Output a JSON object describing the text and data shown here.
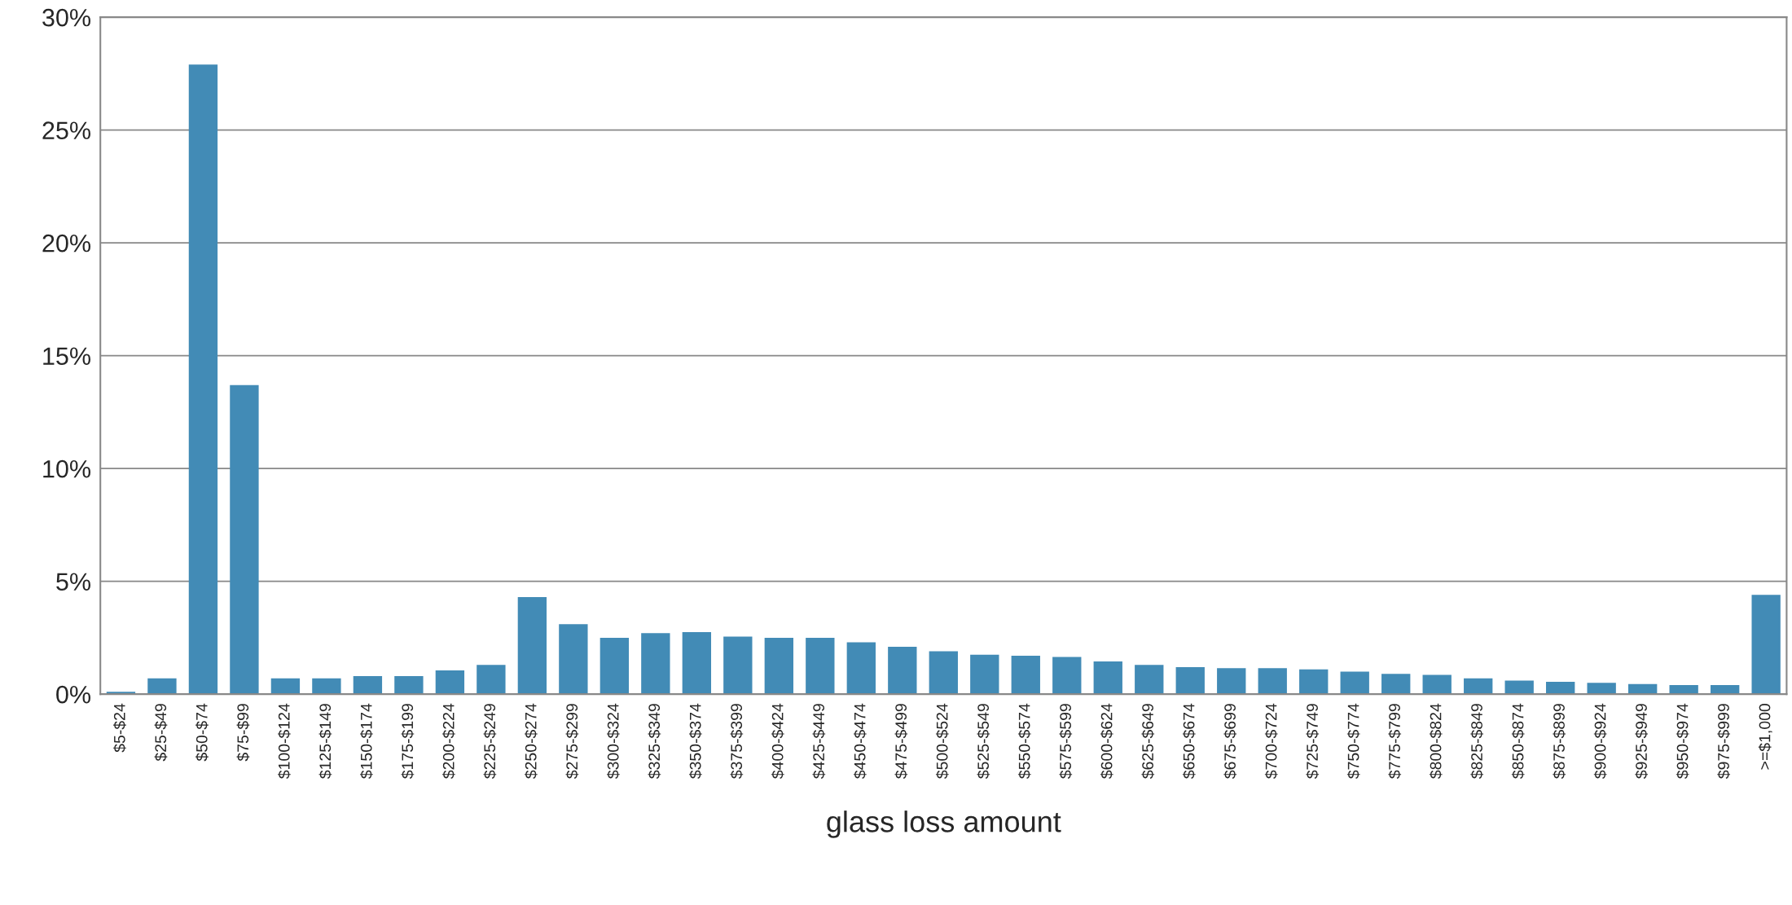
{
  "chart_data": {
    "type": "bar",
    "xlabel": "glass loss amount",
    "categories": [
      "$5-$24",
      "$25-$49",
      "$50-$74",
      "$75-$99",
      "$100-$124",
      "$125-$149",
      "$150-$174",
      "$175-$199",
      "$200-$224",
      "$225-$249",
      "$250-$274",
      "$275-$299",
      "$300-$324",
      "$325-$349",
      "$350-$374",
      "$375-$399",
      "$400-$424",
      "$425-$449",
      "$450-$474",
      "$475-$499",
      "$500-$524",
      "$525-$549",
      "$550-$574",
      "$575-$599",
      "$600-$624",
      "$625-$649",
      "$650-$674",
      "$675-$699",
      "$700-$724",
      "$725-$749",
      "$750-$774",
      "$775-$799",
      "$800-$824",
      "$825-$849",
      "$850-$874",
      "$875-$899",
      "$900-$924",
      "$925-$949",
      "$950-$974",
      "$975-$999",
      ">=$1,000"
    ],
    "values": [
      0.1,
      0.7,
      27.9,
      13.7,
      0.7,
      0.7,
      0.8,
      0.8,
      1.05,
      1.3,
      4.3,
      3.1,
      2.5,
      2.7,
      2.75,
      2.55,
      2.5,
      2.5,
      2.3,
      2.1,
      1.9,
      1.75,
      1.7,
      1.65,
      1.45,
      1.3,
      1.2,
      1.15,
      1.15,
      1.1,
      1.0,
      0.9,
      0.85,
      0.7,
      0.6,
      0.55,
      0.5,
      0.45,
      0.4,
      0.4,
      4.4
    ],
    "color": "#428bb6",
    "ylim": [
      0,
      30
    ],
    "yticks": [
      {
        "value": 0,
        "label": "0%"
      },
      {
        "value": 5,
        "label": "5%"
      },
      {
        "value": 10,
        "label": "10%"
      },
      {
        "value": 15,
        "label": "15%"
      },
      {
        "value": 20,
        "label": "20%"
      },
      {
        "value": 25,
        "label": "25%"
      },
      {
        "value": 30,
        "label": "30%"
      }
    ],
    "grid": "y",
    "legend": false
  }
}
